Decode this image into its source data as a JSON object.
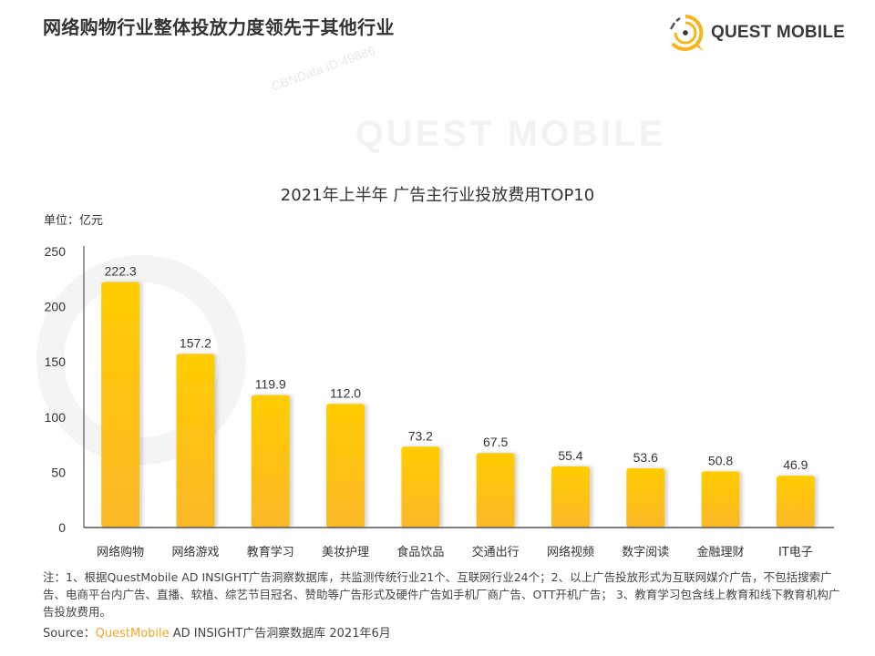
{
  "page": {
    "title": "网络购物行业整体投放力度领先于其他行业",
    "logo_text": "QUEST MOBILE",
    "watermark_big": "QUEST MOBILE",
    "watermark_small": "CBNData ID:49886"
  },
  "colors": {
    "bar_top": "#ffcc00",
    "bar_bottom": "#fbb829",
    "logo_accent": "#f5b51c",
    "source_brand": "#f5a623",
    "axis": "#555555"
  },
  "chart_data": {
    "type": "bar",
    "title": "2021年上半年 广告主行业投放费用TOP10",
    "unit_label": "单位：亿元",
    "xlabel": "",
    "ylabel": "亿元",
    "ylim": [
      0,
      250
    ],
    "yticks": [
      0,
      50,
      100,
      150,
      200,
      250
    ],
    "grid": false,
    "legend": "none",
    "categories": [
      "网络购物",
      "网络游戏",
      "教育学习",
      "美妆护理",
      "食品饮品",
      "交通出行",
      "网络视频",
      "数字阅读",
      "金融理财",
      "IT电子"
    ],
    "values": [
      222.3,
      157.2,
      119.9,
      112.0,
      73.2,
      67.5,
      55.4,
      53.6,
      50.8,
      46.9
    ],
    "value_labels": [
      "222.3",
      "157.2",
      "119.9",
      "112.0",
      "73.2",
      "67.5",
      "55.4",
      "53.6",
      "50.8",
      "46.9"
    ]
  },
  "footer": {
    "notes": "注：1、根据QuestMobile AD INSIGHT广告洞察数据库，共监测传统行业21个、互联网行业24个；2、以上广告投放形式为互联网媒介广告，不包括搜索广告、电商平台内广告、直播、软植、综艺节目冠名、赞助等广告形式及硬件广告如手机厂商广告、OTT开机广告； 3、教育学习包含线上教育和线下教育机构广告投放费用。",
    "source_prefix": "Source：",
    "source_brand": "QuestMobile",
    "source_rest": " AD INSIGHT广告洞察数据库 2021年6月"
  }
}
